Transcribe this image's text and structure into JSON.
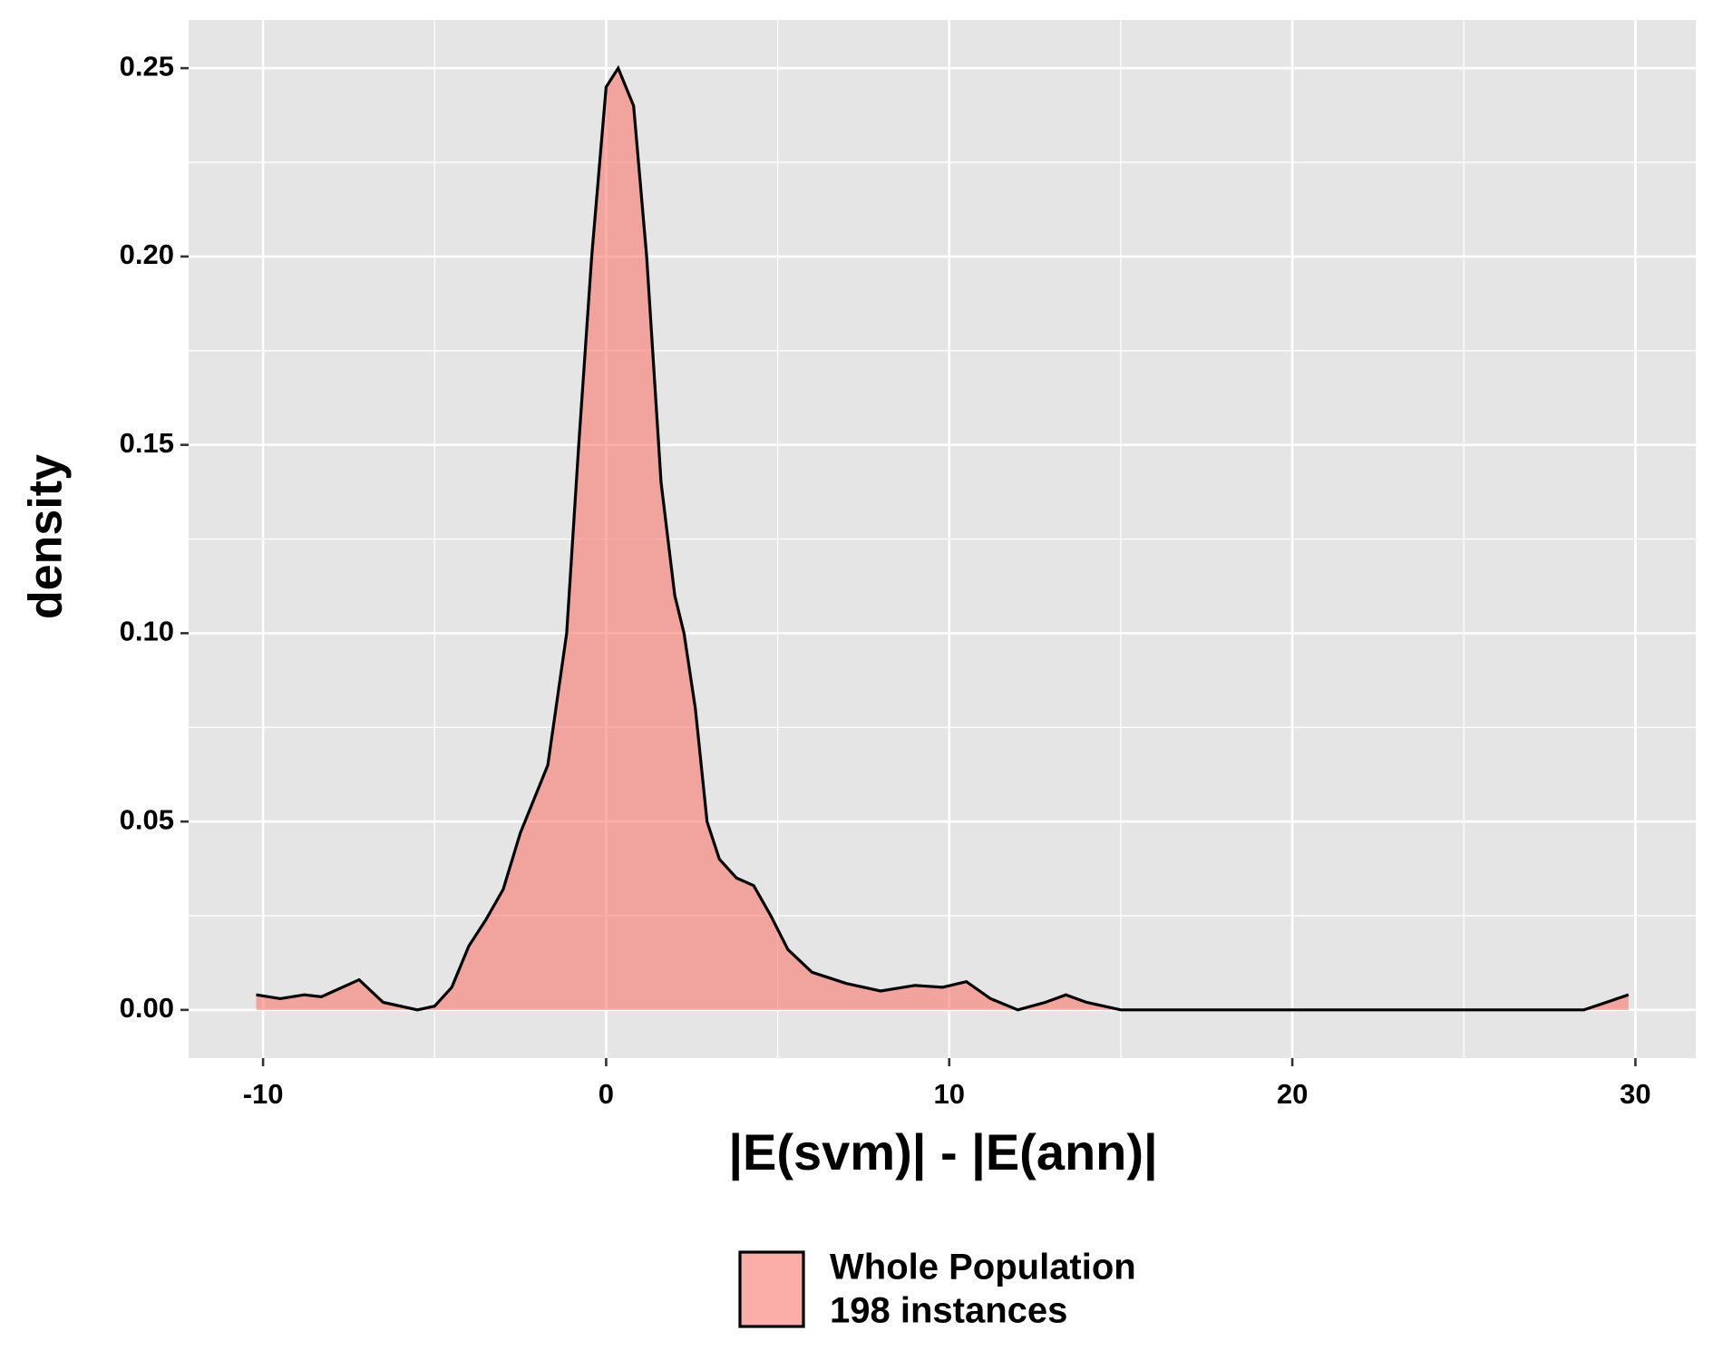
{
  "chart_data": {
    "type": "density",
    "x_label": "|E(svm)| - |E(ann)|",
    "y_label": "density",
    "xlim": [
      -12.17,
      31.76
    ],
    "ylim": [
      -0.0128,
      0.2628
    ],
    "xticks": [
      -10,
      0,
      10,
      20,
      30
    ],
    "yticks": [
      {
        "value": 0,
        "label": "0.00"
      },
      {
        "value": 0.05,
        "label": "0.05"
      },
      {
        "value": 0.1,
        "label": "0.10"
      },
      {
        "value": 0.15,
        "label": "0.15"
      },
      {
        "value": 0.2,
        "label": "0.20"
      },
      {
        "value": 0.25,
        "label": "0.25"
      }
    ],
    "grid": true,
    "legend_position": "bottom",
    "series": [
      {
        "legend_lines": [
          "Whole Population",
          "198 instances"
        ],
        "color": "#F8766D",
        "alpha": 0.6,
        "x": [
          -10.2,
          -9.5,
          -8.8,
          -8.3,
          -7.2,
          -6.5,
          -5.5,
          -5,
          -4.5,
          -4,
          -3.5,
          -3,
          -2.5,
          -2.1,
          -1.7,
          -1.15,
          -0.8,
          -0.42,
          0,
          0.35,
          0.8,
          1.18,
          1.6,
          2,
          2.27,
          2.6,
          2.94,
          3.3,
          3.8,
          4.3,
          4.8,
          5.3,
          6,
          7,
          8,
          9,
          9.8,
          10.5,
          11.2,
          12,
          12.8,
          13.4,
          14,
          15,
          20,
          25,
          28.5,
          29.8
        ],
        "values": [
          0.004,
          0.003,
          0.004,
          0.0035,
          0.008,
          0.002,
          0,
          0.001,
          0.006,
          0.017,
          0.024,
          0.032,
          0.047,
          0.056,
          0.065,
          0.1,
          0.15,
          0.2,
          0.245,
          0.25,
          0.24,
          0.2,
          0.14,
          0.11,
          0.1,
          0.08,
          0.05,
          0.04,
          0.035,
          0.033,
          0.025,
          0.016,
          0.01,
          0.007,
          0.005,
          0.0065,
          0.006,
          0.0075,
          0.003,
          0,
          0.002,
          0.004,
          0.002,
          0,
          0,
          0,
          0,
          0.004
        ]
      }
    ]
  }
}
